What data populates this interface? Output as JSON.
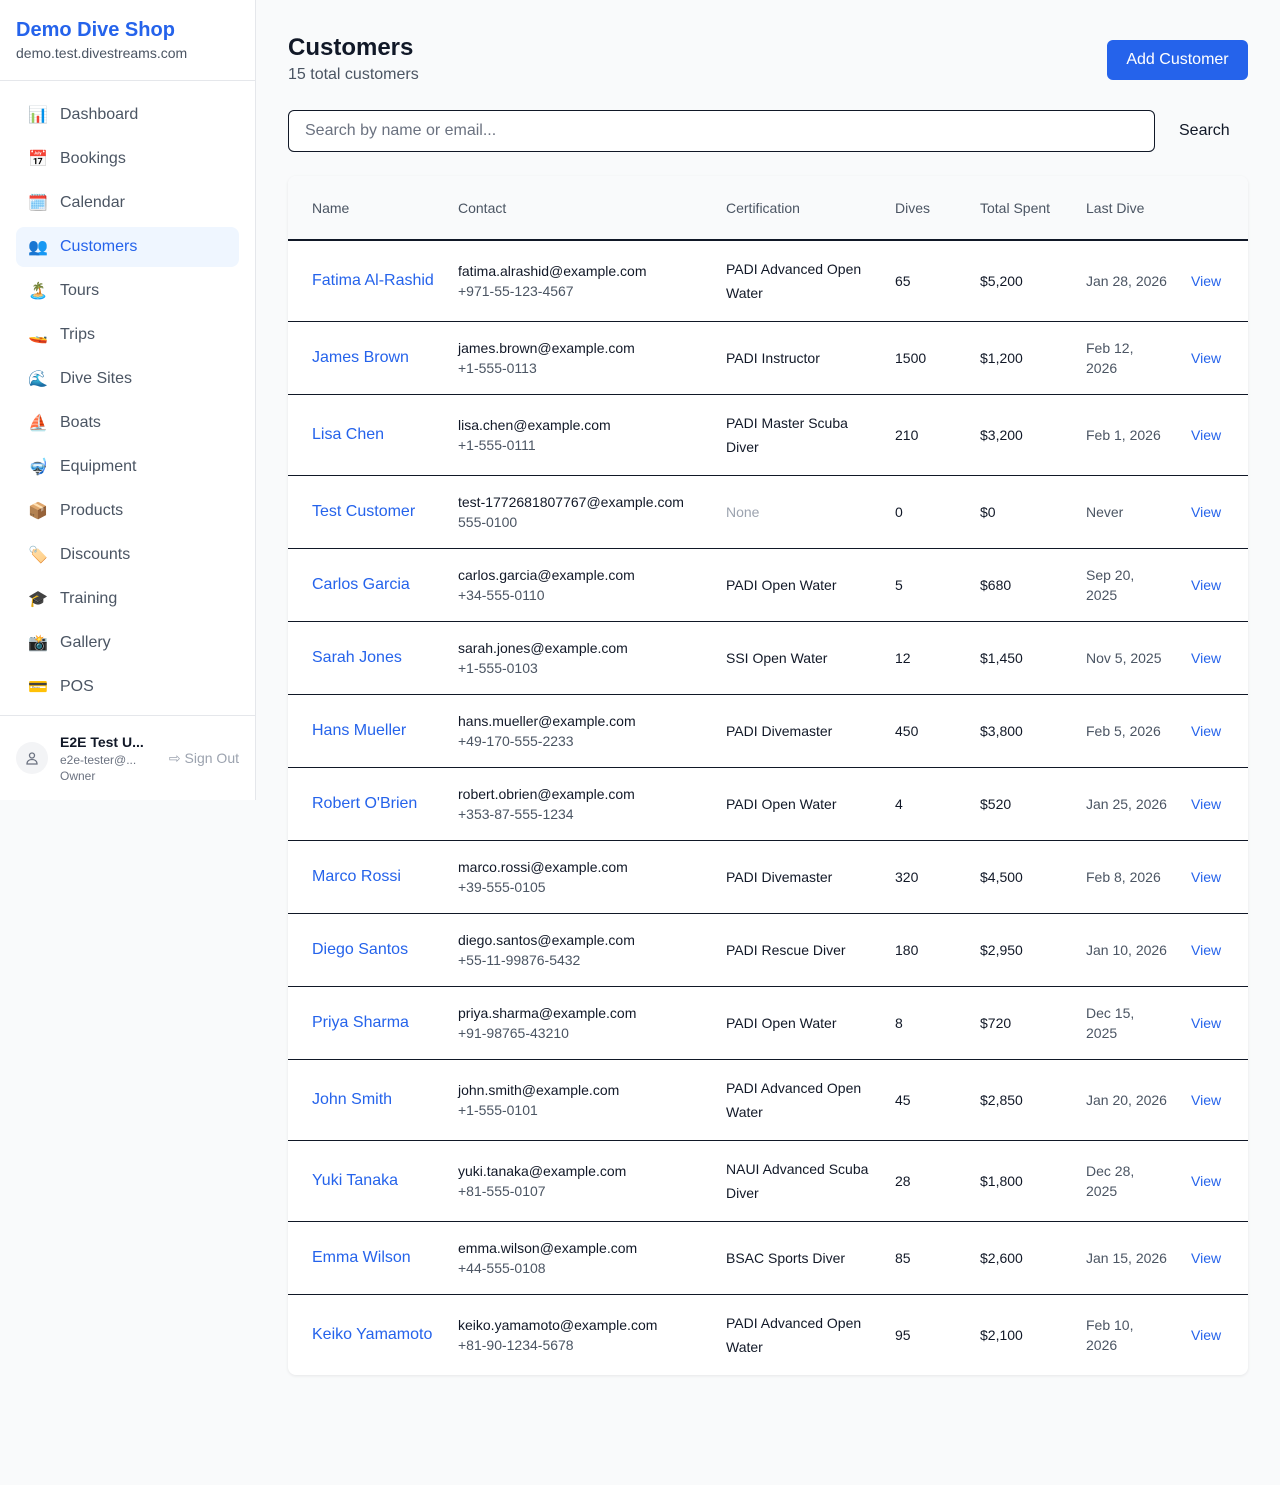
{
  "sidebar": {
    "brand": "Demo Dive Shop",
    "domain": "demo.test.divestreams.com",
    "items": [
      {
        "label": "Dashboard",
        "icon": "📊"
      },
      {
        "label": "Bookings",
        "icon": "📅"
      },
      {
        "label": "Calendar",
        "icon": "🗓️"
      },
      {
        "label": "Customers",
        "icon": "👥",
        "active": true
      },
      {
        "label": "Tours",
        "icon": "🏝️"
      },
      {
        "label": "Trips",
        "icon": "🚤"
      },
      {
        "label": "Dive Sites",
        "icon": "🌊"
      },
      {
        "label": "Boats",
        "icon": "⛵"
      },
      {
        "label": "Equipment",
        "icon": "🤿"
      },
      {
        "label": "Products",
        "icon": "📦"
      },
      {
        "label": "Discounts",
        "icon": "🏷️"
      },
      {
        "label": "Training",
        "icon": "🎓"
      },
      {
        "label": "Gallery",
        "icon": "📸"
      },
      {
        "label": "POS",
        "icon": "💳"
      }
    ],
    "user": {
      "name": "E2E Test U...",
      "email": "e2e-tester@...",
      "role": "Owner",
      "sign_out": "Sign Out"
    }
  },
  "header": {
    "title": "Customers",
    "subtitle": "15 total customers",
    "add_button": "Add Customer"
  },
  "search": {
    "placeholder": "Search by name or email...",
    "button": "Search"
  },
  "table": {
    "columns": [
      "Name",
      "Contact",
      "Certification",
      "Dives",
      "Total Spent",
      "Last Dive",
      ""
    ],
    "view_label": "View",
    "rows": [
      {
        "name": "Fatima Al-Rashid",
        "email": "fatima.alrashid@example.com",
        "phone": "+971-55-123-4567",
        "cert": "PADI Advanced Open Water",
        "dives": "65",
        "spent": "$5,200",
        "last": "Jan 28, 2026"
      },
      {
        "name": "James Brown",
        "email": "james.brown@example.com",
        "phone": "+1-555-0113",
        "cert": "PADI Instructor",
        "dives": "1500",
        "spent": "$1,200",
        "last": "Feb 12, 2026"
      },
      {
        "name": "Lisa Chen",
        "email": "lisa.chen@example.com",
        "phone": "+1-555-0111",
        "cert": "PADI Master Scuba Diver",
        "dives": "210",
        "spent": "$3,200",
        "last": "Feb 1, 2026"
      },
      {
        "name": "Test Customer",
        "email": "test-1772681807767@example.com",
        "phone": "555-0100",
        "cert": "None",
        "dives": "0",
        "spent": "$0",
        "last": "Never"
      },
      {
        "name": "Carlos Garcia",
        "email": "carlos.garcia@example.com",
        "phone": "+34-555-0110",
        "cert": "PADI Open Water",
        "dives": "5",
        "spent": "$680",
        "last": "Sep 20, 2025"
      },
      {
        "name": "Sarah Jones",
        "email": "sarah.jones@example.com",
        "phone": "+1-555-0103",
        "cert": "SSI Open Water",
        "dives": "12",
        "spent": "$1,450",
        "last": "Nov 5, 2025"
      },
      {
        "name": "Hans Mueller",
        "email": "hans.mueller@example.com",
        "phone": "+49-170-555-2233",
        "cert": "PADI Divemaster",
        "dives": "450",
        "spent": "$3,800",
        "last": "Feb 5, 2026"
      },
      {
        "name": "Robert O'Brien",
        "email": "robert.obrien@example.com",
        "phone": "+353-87-555-1234",
        "cert": "PADI Open Water",
        "dives": "4",
        "spent": "$520",
        "last": "Jan 25, 2026"
      },
      {
        "name": "Marco Rossi",
        "email": "marco.rossi@example.com",
        "phone": "+39-555-0105",
        "cert": "PADI Divemaster",
        "dives": "320",
        "spent": "$4,500",
        "last": "Feb 8, 2026"
      },
      {
        "name": "Diego Santos",
        "email": "diego.santos@example.com",
        "phone": "+55-11-99876-5432",
        "cert": "PADI Rescue Diver",
        "dives": "180",
        "spent": "$2,950",
        "last": "Jan 10, 2026"
      },
      {
        "name": "Priya Sharma",
        "email": "priya.sharma@example.com",
        "phone": "+91-98765-43210",
        "cert": "PADI Open Water",
        "dives": "8",
        "spent": "$720",
        "last": "Dec 15, 2025"
      },
      {
        "name": "John Smith",
        "email": "john.smith@example.com",
        "phone": "+1-555-0101",
        "cert": "PADI Advanced Open Water",
        "dives": "45",
        "spent": "$2,850",
        "last": "Jan 20, 2026"
      },
      {
        "name": "Yuki Tanaka",
        "email": "yuki.tanaka@example.com",
        "phone": "+81-555-0107",
        "cert": "NAUI Advanced Scuba Diver",
        "dives": "28",
        "spent": "$1,800",
        "last": "Dec 28, 2025"
      },
      {
        "name": "Emma Wilson",
        "email": "emma.wilson@example.com",
        "phone": "+44-555-0108",
        "cert": "BSAC Sports Diver",
        "dives": "85",
        "spent": "$2,600",
        "last": "Jan 15, 2026"
      },
      {
        "name": "Keiko Yamamoto",
        "email": "keiko.yamamoto@example.com",
        "phone": "+81-90-1234-5678",
        "cert": "PADI Advanced Open Water",
        "dives": "95",
        "spent": "$2,100",
        "last": "Feb 10, 2026"
      }
    ]
  }
}
